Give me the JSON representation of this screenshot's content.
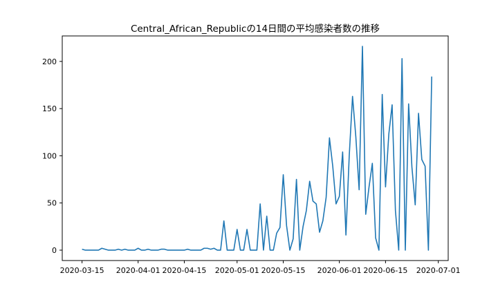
{
  "chart_data": {
    "type": "line",
    "title": "Central_African_Republicの14日間の平均感染者数の推移",
    "xlabel": "",
    "ylabel": "",
    "x_start": "2020-03-15",
    "x_end": "2020-06-29",
    "xlim": [
      "2020-03-09",
      "2020-07-04"
    ],
    "ylim": [
      -11,
      227
    ],
    "x_ticks": [
      "2020-03-15",
      "2020-04-01",
      "2020-04-15",
      "2020-05-01",
      "2020-05-15",
      "2020-06-01",
      "2020-06-15",
      "2020-07-01"
    ],
    "y_ticks": [
      0,
      50,
      100,
      150,
      200
    ],
    "grid": false,
    "line_color": "#1f77b4",
    "values": [
      1,
      0,
      0,
      0,
      0,
      0,
      2,
      1,
      0,
      0,
      0,
      1,
      0,
      1,
      0,
      0,
      0,
      2,
      0,
      0,
      1,
      0,
      0,
      0,
      1,
      1,
      0,
      0,
      0,
      0,
      0,
      0,
      1,
      0,
      0,
      0,
      0,
      2,
      2,
      1,
      2,
      0,
      0,
      31,
      0,
      0,
      0,
      22,
      0,
      0,
      22,
      0,
      0,
      0,
      49,
      0,
      36,
      0,
      0,
      18,
      24,
      80,
      26,
      0,
      12,
      75,
      0,
      25,
      42,
      73,
      52,
      49,
      19,
      31,
      56,
      119,
      89,
      49,
      57,
      104,
      16,
      100,
      163,
      120,
      64,
      216,
      38,
      67,
      92,
      13,
      0,
      165,
      67,
      123,
      154,
      42,
      0,
      203,
      0,
      155,
      88,
      48,
      145,
      96,
      89,
      0,
      184
    ]
  }
}
